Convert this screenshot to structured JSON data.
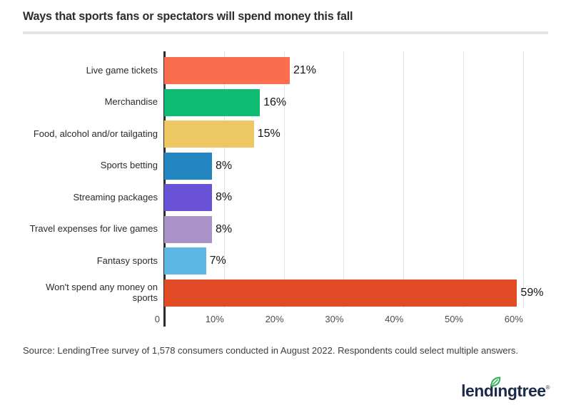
{
  "page": {
    "title": "Ways that sports fans or spectators will spend money this fall",
    "source": "Source: LendingTree survey of 1,578 consumers conducted in August 2022. Respondents could select multiple answers.",
    "logo": {
      "text_before_i": "lend",
      "i_char": "ı",
      "text_after_i": "ngtree",
      "registered_mark": "®",
      "brand_navy": "#1b2b4a",
      "leaf_green": "#33b156"
    }
  },
  "chart_data": {
    "type": "bar",
    "orientation": "horizontal",
    "title": "Ways that sports fans or spectators will spend money this fall",
    "categories": [
      "Live game tickets",
      "Merchandise",
      "Food, alcohol and/or tailgating",
      "Sports betting",
      "Streaming packages",
      "Travel expenses for live games",
      "Fantasy sports",
      "Won't spend any money on sports"
    ],
    "values": [
      21,
      16,
      15,
      8,
      8,
      8,
      7,
      59
    ],
    "value_labels": [
      "21%",
      "16%",
      "15%",
      "8%",
      "8%",
      "8%",
      "7%",
      "59%"
    ],
    "bar_colors": [
      "#fb6d4f",
      "#0ebc74",
      "#ecc763",
      "#2486c0",
      "#6a52d7",
      "#a992c7",
      "#5fb7e5",
      "#e14b26"
    ],
    "x_ticks": [
      {
        "value": 0,
        "label": "0"
      },
      {
        "value": 10,
        "label": "10%"
      },
      {
        "value": 20,
        "label": "20%"
      },
      {
        "value": 30,
        "label": "30%"
      },
      {
        "value": 40,
        "label": "40%"
      },
      {
        "value": 50,
        "label": "50%"
      },
      {
        "value": 60,
        "label": "60%"
      }
    ],
    "xlim": [
      0,
      64.2
    ],
    "grid": true,
    "legend": false,
    "gridline_color": "#e1e1e1",
    "axis_color": "#2b2b2b"
  }
}
